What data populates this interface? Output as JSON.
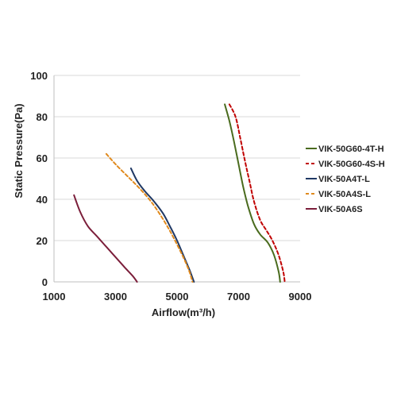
{
  "chart_data": {
    "type": "line",
    "xlabel": "Airflow(m³/h)",
    "ylabel": "Static Pressure(Pa)",
    "xlim": [
      1000,
      9000
    ],
    "ylim": [
      0,
      100
    ],
    "xticks": [
      1000,
      3000,
      5000,
      7000,
      9000
    ],
    "yticks": [
      0,
      20,
      40,
      60,
      80,
      100
    ],
    "grid": "horizontal",
    "legend_position": "right",
    "series": [
      {
        "name": "VIK-50G60-4T-H",
        "color": "#4a6b1e",
        "dash": "solid",
        "x": [
          6550,
          6700,
          6850,
          7000,
          7150,
          7300,
          7500,
          7700,
          7950,
          8150,
          8300,
          8350
        ],
        "y": [
          86,
          78,
          68,
          57,
          46,
          37,
          28,
          23,
          19,
          13,
          5,
          0
        ]
      },
      {
        "name": "VIK-50G60-4S-H",
        "color": "#c00000",
        "dash": "dashed",
        "x": [
          6700,
          6900,
          7050,
          7200,
          7350,
          7500,
          7700,
          7900,
          8100,
          8300,
          8450,
          8500
        ],
        "y": [
          86,
          80,
          70,
          59,
          49,
          39,
          30,
          25,
          20,
          13,
          5,
          0
        ]
      },
      {
        "name": "VIK-50A4T-L",
        "color": "#1f3864",
        "dash": "solid",
        "x": [
          3500,
          3700,
          3950,
          4250,
          4550,
          4800,
          5000,
          5200,
          5400,
          5550
        ],
        "y": [
          55,
          49,
          44,
          39,
          33,
          26,
          20,
          13,
          6,
          0
        ]
      },
      {
        "name": "VIK-50A4S-L",
        "color": "#e08a1e",
        "dash": "dashed",
        "x": [
          2700,
          3000,
          3400,
          3800,
          4200,
          4600,
          4900,
          5200,
          5400,
          5500
        ],
        "y": [
          62,
          57,
          51,
          45,
          38,
          29,
          21,
          12,
          5,
          0
        ]
      },
      {
        "name": "VIK-50A6S",
        "color": "#7b1e3a",
        "dash": "solid",
        "x": [
          1650,
          1850,
          2100,
          2400,
          2700,
          3000,
          3300,
          3550,
          3700
        ],
        "y": [
          42,
          34,
          27,
          22,
          17,
          12,
          7,
          3,
          0
        ]
      }
    ]
  }
}
